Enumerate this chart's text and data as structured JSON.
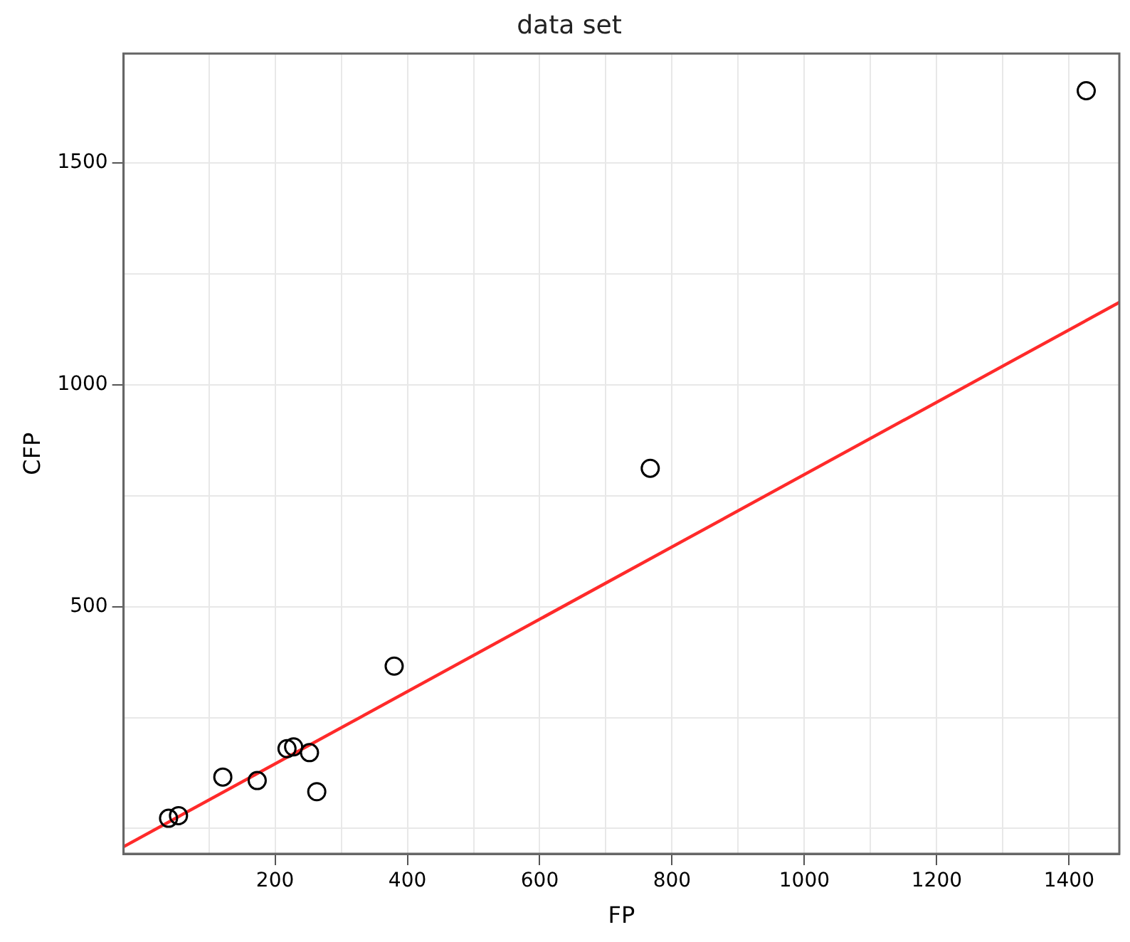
{
  "chart_data": {
    "type": "scatter",
    "title": "data set",
    "xlabel": "FP",
    "ylabel": "CFP",
    "xlim": [
      -29,
      1476
    ],
    "ylim": [
      -57,
      1747
    ],
    "xticks": [
      {
        "value": 100,
        "label": null
      },
      200,
      {
        "value": 300,
        "label": null
      },
      400,
      {
        "value": 500,
        "label": null
      },
      600,
      {
        "value": 700,
        "label": null
      },
      800,
      {
        "value": 900,
        "label": null
      },
      1000,
      {
        "value": 1100,
        "label": null
      },
      1200,
      {
        "value": 1300,
        "label": null
      },
      1400
    ],
    "yticks": [
      {
        "value": 0,
        "label": null
      },
      {
        "value": 250,
        "label": null
      },
      500,
      {
        "value": 750,
        "label": null
      },
      1000,
      {
        "value": 1250,
        "label": null
      },
      1500
    ],
    "grid": true,
    "marker": "circle",
    "series": [
      {
        "color": "#000000",
        "x": [
          1426,
          767,
          380,
          39,
          54,
          121,
          173,
          218,
          228,
          252,
          263
        ],
        "values": [
          1663,
          812,
          366,
          23,
          29,
          116,
          108,
          180,
          184,
          171,
          83
        ]
      },
      {
        "type": "line",
        "color": "#ff2a2a",
        "marker": "none",
        "x": [
          -29,
          1476
        ],
        "values": [
          -41,
          1186
        ]
      }
    ]
  }
}
